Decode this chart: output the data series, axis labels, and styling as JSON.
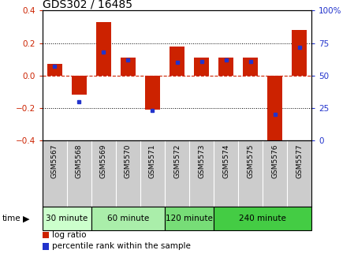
{
  "title": "GDS302 / 16485",
  "samples": [
    "GSM5567",
    "GSM5568",
    "GSM5569",
    "GSM5570",
    "GSM5571",
    "GSM5572",
    "GSM5573",
    "GSM5574",
    "GSM5575",
    "GSM5576",
    "GSM5577"
  ],
  "log_ratio": [
    0.07,
    -0.12,
    0.33,
    0.11,
    -0.21,
    0.18,
    0.11,
    0.11,
    0.11,
    -0.42,
    0.28
  ],
  "percentile": [
    57,
    30,
    68,
    62,
    23,
    60,
    61,
    62,
    61,
    20,
    72
  ],
  "groups": [
    {
      "label": "30 minute",
      "start": 0,
      "end": 2,
      "color": "#ccffcc"
    },
    {
      "label": "60 minute",
      "start": 2,
      "end": 5,
      "color": "#aaeeaa"
    },
    {
      "label": "120 minute",
      "start": 5,
      "end": 7,
      "color": "#77dd77"
    },
    {
      "label": "240 minute",
      "start": 7,
      "end": 11,
      "color": "#44cc44"
    }
  ],
  "ylim": [
    -0.4,
    0.4
  ],
  "yticks_left": [
    -0.4,
    -0.2,
    0.0,
    0.2,
    0.4
  ],
  "yticks_right": [
    0,
    25,
    50,
    75,
    100
  ],
  "bar_color": "#cc2200",
  "dot_color": "#2233cc",
  "bg_color": "#ffffff",
  "time_label": "time",
  "legend_log": "log ratio",
  "legend_pct": "percentile rank within the sample"
}
